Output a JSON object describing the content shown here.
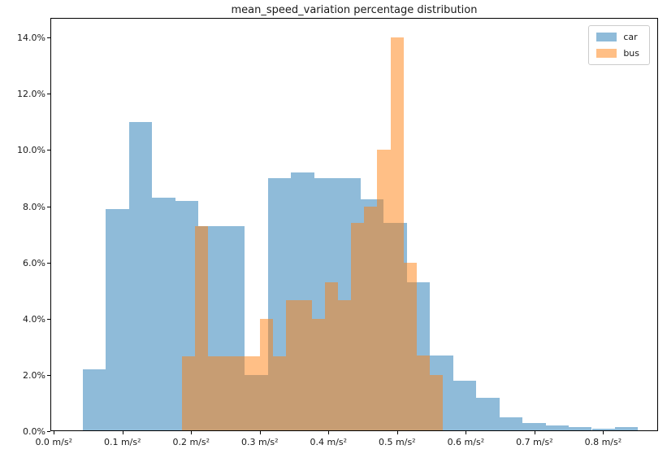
{
  "title": "mean_speed_variation percentage distribution",
  "legend": {
    "items": [
      {
        "label": "car",
        "rgb": "31,119,180",
        "alpha": 0.5
      },
      {
        "label": "bus",
        "rgb": "255,127,14",
        "alpha": 0.5
      }
    ],
    "position": "upper right"
  },
  "chart_data": {
    "type": "bar",
    "subtype": "overlapping-histogram",
    "title": "mean_speed_variation percentage distribution",
    "xlabel": "",
    "ylabel": "",
    "x_unit": "m/s²",
    "y_unit": "%",
    "grid": false,
    "legend_position": "upper right",
    "xlim": [
      -0.005,
      0.88
    ],
    "ylim": [
      0,
      14.7
    ],
    "x_ticks": [
      {
        "value": 0.0,
        "label": "0.0 m/s²"
      },
      {
        "value": 0.1,
        "label": "0.1 m/s²"
      },
      {
        "value": 0.2,
        "label": "0.2 m/s²"
      },
      {
        "value": 0.3,
        "label": "0.3 m/s²"
      },
      {
        "value": 0.4,
        "label": "0.4 m/s²"
      },
      {
        "value": 0.5,
        "label": "0.5 m/s²"
      },
      {
        "value": 0.6,
        "label": "0.6 m/s²"
      },
      {
        "value": 0.7,
        "label": "0.7 m/s²"
      },
      {
        "value": 0.8,
        "label": "0.8 m/s²"
      }
    ],
    "y_ticks": [
      {
        "value": 0,
        "label": "0.0%"
      },
      {
        "value": 2,
        "label": "2.0%"
      },
      {
        "value": 4,
        "label": "4.0%"
      },
      {
        "value": 6,
        "label": "6.0%"
      },
      {
        "value": 8,
        "label": "8.0%"
      },
      {
        "value": 10,
        "label": "10.0%"
      },
      {
        "value": 12,
        "label": "12.0%"
      },
      {
        "value": 14,
        "label": "14.0%"
      }
    ],
    "series": [
      {
        "name": "car",
        "color": "#1f77b4",
        "rgb": "31,119,180",
        "alpha": 0.5,
        "bin_start": 0.041,
        "bin_width": 0.0337,
        "values_unit": "percent",
        "values": [
          2.2,
          7.9,
          11.0,
          8.3,
          8.2,
          7.3,
          7.3,
          2.0,
          9.0,
          9.2,
          9.0,
          9.0,
          8.25,
          7.4,
          5.3,
          2.7,
          1.8,
          1.2,
          0.5,
          0.3,
          0.2,
          0.15,
          0.1,
          0.15
        ]
      },
      {
        "name": "bus",
        "color": "#ff7f0e",
        "rgb": "255,127,14",
        "alpha": 0.5,
        "bin_start": 0.185,
        "bin_width": 0.019,
        "values_unit": "percent",
        "values": [
          2.65,
          7.3,
          2.65,
          2.65,
          2.65,
          2.65,
          4.0,
          2.65,
          4.65,
          4.65,
          4.0,
          5.3,
          4.65,
          7.4,
          8.0,
          10.0,
          14.0,
          6.0,
          2.7,
          2.0
        ]
      }
    ]
  }
}
